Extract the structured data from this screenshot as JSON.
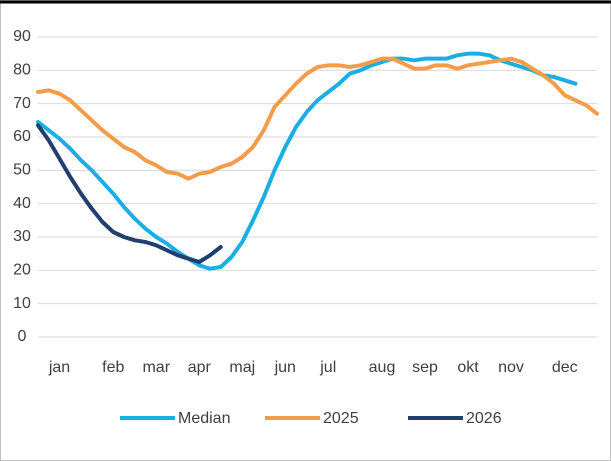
{
  "chart_data": {
    "type": "line",
    "categories": [
      null,
      null,
      "jan",
      null,
      null,
      null,
      null,
      "feb",
      null,
      null,
      null,
      "mar",
      null,
      null,
      null,
      "apr",
      null,
      null,
      null,
      "maj",
      null,
      null,
      null,
      "jun",
      null,
      null,
      null,
      "jul",
      null,
      null,
      null,
      null,
      "aug",
      null,
      null,
      null,
      "sep",
      null,
      null,
      null,
      "okt",
      null,
      null,
      null,
      "nov",
      null,
      null,
      null,
      null,
      "dec",
      null,
      null,
      null
    ],
    "series": [
      {
        "name": "Median",
        "color": "#1aaee5",
        "values": [
          64.5,
          62,
          59.5,
          56.5,
          53,
          50,
          46.5,
          43,
          39,
          35.5,
          32.5,
          30,
          28,
          25.5,
          23.5,
          21.5,
          20.5,
          21,
          24,
          28.5,
          35,
          42,
          50,
          57,
          63,
          67.5,
          71,
          73.5,
          76,
          79,
          80,
          81.5,
          82.5,
          83.5,
          83.5,
          83,
          83.5,
          83.5,
          83.5,
          84.5,
          85,
          85,
          84.5,
          83,
          82,
          81,
          80,
          78.5,
          78,
          77,
          76,
          null,
          null
        ]
      },
      {
        "name": "2025",
        "color": "#f59c4b",
        "values": [
          73.5,
          74,
          73,
          71,
          68,
          65,
          62,
          59.5,
          57,
          55.5,
          53,
          51.5,
          49.5,
          49,
          47.5,
          49,
          49.5,
          51,
          52,
          54,
          57,
          62,
          69,
          72.5,
          76,
          79,
          81,
          81.5,
          81.5,
          81,
          81.5,
          82.5,
          83.5,
          83.5,
          82,
          80.5,
          80.5,
          81.5,
          81.5,
          80.5,
          81.5,
          82,
          82.5,
          83,
          83.5,
          82.5,
          80.5,
          78.5,
          76,
          72.5,
          71,
          69.5,
          67
        ]
      },
      {
        "name": "2026",
        "color": "#203f6e",
        "values": [
          63.5,
          59,
          53.5,
          48,
          43,
          38.5,
          34.5,
          31.5,
          30,
          29,
          28.5,
          27.5,
          26,
          24.5,
          23.5,
          22.5,
          24.5,
          27,
          null,
          null,
          null,
          null,
          null,
          null,
          null,
          null,
          null,
          null,
          null,
          null,
          null,
          null,
          null,
          null,
          null,
          null,
          null,
          null,
          null,
          null,
          null,
          null,
          null,
          null,
          null,
          null,
          null,
          null,
          null,
          null,
          null,
          null,
          null
        ]
      }
    ],
    "ylim": [
      0,
      90
    ],
    "yticks": [
      0,
      10,
      20,
      30,
      40,
      50,
      60,
      70,
      80,
      90
    ],
    "grid": true,
    "legend": "bottom"
  }
}
